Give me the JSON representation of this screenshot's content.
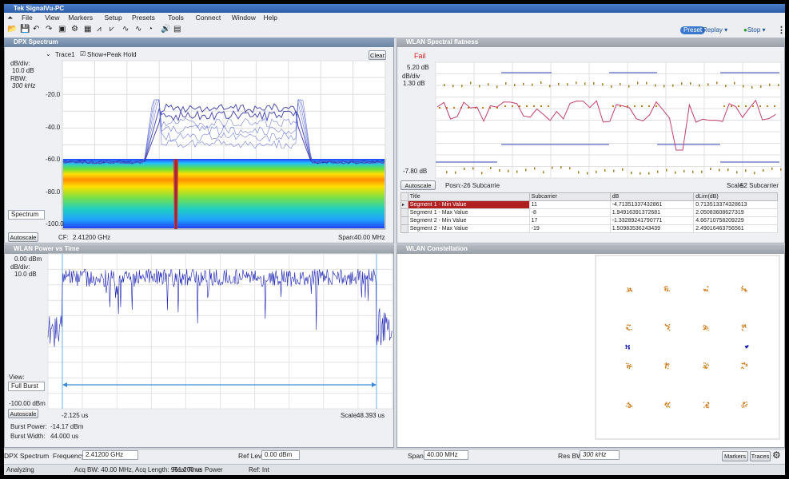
{
  "window_title": "Tek SignalVu-PC",
  "menu": [
    "File",
    "View",
    "Markers",
    "Setup",
    "Presets",
    "Tools",
    "Connect",
    "Window",
    "Help"
  ],
  "toolbar": {
    "preset": "Preset",
    "replay": "Replay",
    "stop": "Stop"
  },
  "dpx": {
    "title": "DPX Spectrum",
    "trace": "Trace1",
    "show": "Show",
    "peak_hold": "+Peak Hold",
    "clear": "Clear",
    "db_div_label": "dB/div:",
    "db_div": "10.0 dB",
    "rbw_label": "RBW:",
    "rbw": "300 kHz",
    "y_ticks": [
      "-20.0",
      "-40.0",
      "-60.0",
      "-80.0",
      "-100.0"
    ],
    "mode": "Spectrum",
    "autoscale": "Autoscale",
    "cf_label": "CF:",
    "cf": "2.41200 GHz",
    "span_label": "Span:",
    "span": "40.00 MHz"
  },
  "flatness": {
    "title": "WLAN Spectral flatness",
    "status": "Fail",
    "top": "5.20 dB",
    "db_div_label": "dB/div",
    "db_div": "1.30 dB",
    "bottom": "-7.80 dB",
    "autoscale": "Autoscale",
    "posn_label": "Posn:",
    "posn": "-26 Subcarrie",
    "scale_label": "Scale:",
    "scale": "52 Subcarrier",
    "table": {
      "columns": [
        "Title",
        "Subcarrier",
        "dB",
        "dLim(dB)"
      ],
      "rows": [
        [
          "Segment 1 - Min Value",
          "11",
          "-4.71351337432861",
          "0.713513374328613"
        ],
        [
          "Segment 1 - Max Value",
          "-8",
          "1.94916391372681",
          "2.05083608627319"
        ],
        [
          "Segment 2 - Min Value",
          "17",
          "-1.33289241790771",
          "4.66710758209229"
        ],
        [
          "Segment 2 - Max Value",
          "-19",
          "1.50983536243439",
          "2.49016463756561"
        ]
      ]
    }
  },
  "pvt": {
    "title": "WLAN Power vs Time",
    "top": "0.00 dBm",
    "db_div_label": "dB/div:",
    "db_div": "10.0 dB",
    "view_label": "View:",
    "view": "Full Burst",
    "bottom": "-100.00 dBm",
    "autoscale": "Autoscale",
    "start": "-2.125 us",
    "scale_label": "Scale:",
    "scale": "48.393 us",
    "burst_power_label": "Burst Power:",
    "burst_power": "-14.17 dBm",
    "burst_width_label": "Burst Width:",
    "burst_width": "44.000 us"
  },
  "constellation": {
    "title": "WLAN Constellation"
  },
  "bottom_bar": {
    "measurement": "DPX Spectrum",
    "frequency_label": "Frequency",
    "frequency": "2.41200 GHz",
    "ref_lev_label": "Ref Lev",
    "ref_lev": "0.00 dBm",
    "span_label": "Span",
    "span": "40.00 MHz",
    "res_bw_label": "Res BW",
    "res_bw": "300 kHz",
    "markers": "Markers",
    "traces": "Traces"
  },
  "status": [
    "Analyzing",
    "Acq BW: 40.00 MHz, Acq Length: 951.200 us",
    "Real Time",
    "Power",
    "Ref: Int"
  ]
}
